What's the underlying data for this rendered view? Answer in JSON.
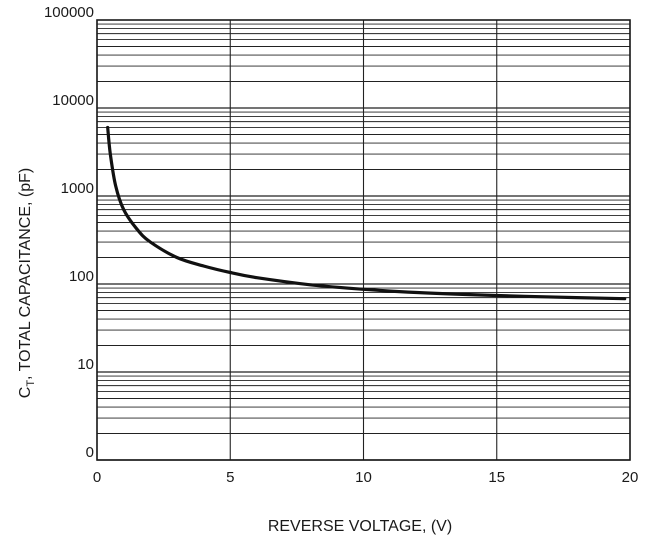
{
  "chart_data": {
    "type": "line",
    "title": "",
    "xlabel": "REVERSE VOLTAGE, (V)",
    "ylabel_prefix": "C",
    "ylabel_subscript": "T",
    "ylabel_rest": ", TOTAL CAPACITANCE, (pF)",
    "xlim": [
      0,
      20
    ],
    "y_tick_labels": [
      "0",
      "10",
      "100",
      "1000",
      "10000",
      "100000"
    ],
    "x_ticks": [
      0,
      5,
      10,
      15,
      20
    ],
    "x_tick_labels": [
      "0",
      "5",
      "10",
      "15",
      "20"
    ],
    "y_scale": "log",
    "grid": true,
    "colors": {
      "curve": "#111111",
      "grid": "#222222",
      "text": "#1a1a1a"
    },
    "series": [
      {
        "x": [
          0.4,
          0.5,
          0.7,
          1.0,
          1.5,
          2.0,
          3.0,
          4.0,
          5.0,
          6.0,
          8.0,
          10.0,
          12.0,
          15.0,
          18.0,
          19.8
        ],
        "y": [
          6000,
          3000,
          1300,
          700,
          420,
          300,
          200,
          160,
          135,
          118,
          98,
          87,
          80,
          74,
          70,
          68
        ]
      }
    ]
  }
}
